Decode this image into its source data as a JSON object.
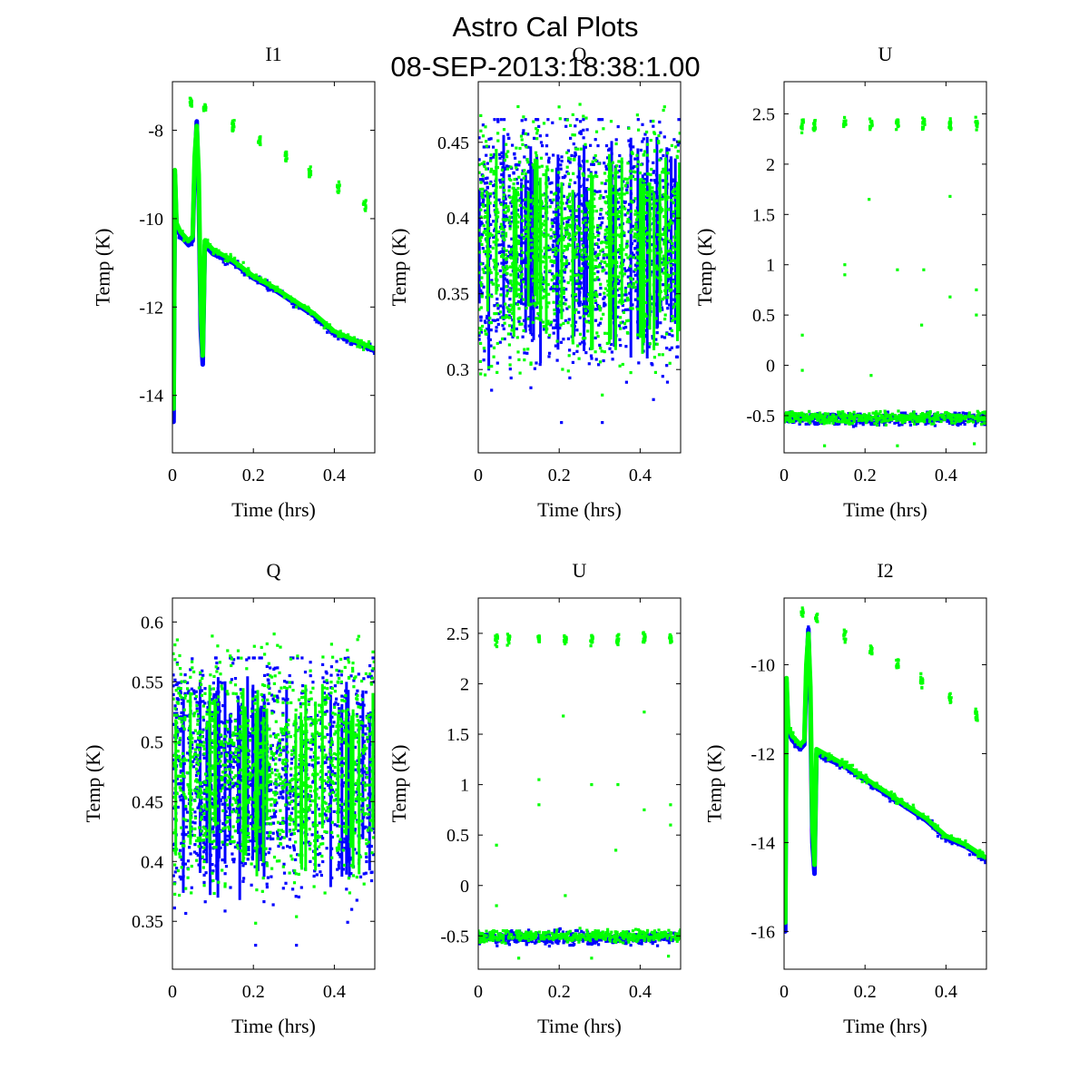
{
  "figure": {
    "title_line1": "Astro Cal Plots",
    "title_line2": "08-SEP-2013:18:38:1.00"
  },
  "colors": {
    "series_blue": "#0000ff",
    "series_green": "#00ff00",
    "axes": "#000000",
    "background": "#ffffff"
  },
  "chart_data": [
    {
      "type": "scatter",
      "title": "I1",
      "xlabel": "Time (hrs)",
      "ylabel": "Temp (K)",
      "xlim": [
        0,
        0.5
      ],
      "ylim": [
        -15.3,
        -6.9
      ],
      "xticks": [
        0,
        0.2,
        0.4
      ],
      "xtick_labels": [
        "0",
        "0.2",
        "0.4"
      ],
      "yticks": [
        -14,
        -12,
        -10,
        -8
      ],
      "ytick_labels": [
        "-14",
        "-12",
        "-10",
        "-8"
      ],
      "series": [
        {
          "name": "blue",
          "color": "#0000ff",
          "kind": "drift",
          "points": [
            [
              0.0,
              -10.0
            ],
            [
              0.003,
              -14.6
            ],
            [
              0.006,
              -9.0
            ],
            [
              0.01,
              -10.2
            ],
            [
              0.02,
              -10.4
            ],
            [
              0.03,
              -10.5
            ],
            [
              0.04,
              -10.6
            ],
            [
              0.05,
              -10.5
            ],
            [
              0.055,
              -8.8
            ],
            [
              0.06,
              -7.8
            ],
            [
              0.065,
              -9.5
            ],
            [
              0.07,
              -12.5
            ],
            [
              0.075,
              -13.3
            ],
            [
              0.08,
              -10.6
            ],
            [
              0.1,
              -10.8
            ],
            [
              0.15,
              -11.0
            ],
            [
              0.2,
              -11.35
            ],
            [
              0.25,
              -11.6
            ],
            [
              0.3,
              -11.9
            ],
            [
              0.35,
              -12.2
            ],
            [
              0.4,
              -12.6
            ],
            [
              0.45,
              -12.8
            ],
            [
              0.5,
              -13.0
            ]
          ]
        },
        {
          "name": "green",
          "color": "#00ff00",
          "kind": "drift",
          "points": [
            [
              0.0,
              -9.5
            ],
            [
              0.003,
              -14.3
            ],
            [
              0.006,
              -8.9
            ],
            [
              0.01,
              -10.1
            ],
            [
              0.02,
              -10.3
            ],
            [
              0.03,
              -10.4
            ],
            [
              0.04,
              -10.5
            ],
            [
              0.05,
              -10.4
            ],
            [
              0.055,
              -8.6
            ],
            [
              0.06,
              -7.9
            ],
            [
              0.065,
              -9.0
            ],
            [
              0.07,
              -12.0
            ],
            [
              0.075,
              -13.1
            ],
            [
              0.08,
              -10.5
            ],
            [
              0.1,
              -10.7
            ],
            [
              0.15,
              -10.95
            ],
            [
              0.2,
              -11.3
            ],
            [
              0.25,
              -11.55
            ],
            [
              0.3,
              -11.85
            ],
            [
              0.35,
              -12.15
            ],
            [
              0.4,
              -12.55
            ],
            [
              0.45,
              -12.75
            ],
            [
              0.5,
              -12.95
            ]
          ]
        },
        {
          "name": "green-outliers",
          "color": "#00ff00",
          "kind": "clusters",
          "points": [
            [
              0.045,
              -7.35
            ],
            [
              0.08,
              -7.5
            ],
            [
              0.15,
              -7.9
            ],
            [
              0.215,
              -8.25
            ],
            [
              0.28,
              -8.55
            ],
            [
              0.34,
              -8.95
            ],
            [
              0.41,
              -9.3
            ],
            [
              0.475,
              -9.7
            ]
          ]
        }
      ]
    },
    {
      "type": "scatter",
      "title": "Q",
      "xlabel": "Time (hrs)",
      "ylabel": "Temp (K)",
      "xlim": [
        0,
        0.5
      ],
      "ylim": [
        0.245,
        0.49
      ],
      "xticks": [
        0,
        0.2,
        0.4
      ],
      "xtick_labels": [
        "0",
        "0.2",
        "0.4"
      ],
      "yticks": [
        0.3,
        0.35,
        0.4,
        0.45
      ],
      "ytick_labels": [
        "0.3",
        "0.35",
        "0.4",
        "0.45"
      ],
      "series": [
        {
          "name": "blue",
          "color": "#0000ff",
          "kind": "noise",
          "center": 0.385,
          "spread": 0.05,
          "min": 0.265,
          "max": 0.465
        },
        {
          "name": "green",
          "color": "#00ff00",
          "kind": "noise",
          "center": 0.385,
          "spread": 0.042,
          "min": 0.275,
          "max": 0.475
        }
      ]
    },
    {
      "type": "scatter",
      "title": "U",
      "xlabel": "Time (hrs)",
      "ylabel": "Temp (K)",
      "xlim": [
        0,
        0.5
      ],
      "ylim": [
        -0.87,
        2.82
      ],
      "xticks": [
        0,
        0.2,
        0.4
      ],
      "xtick_labels": [
        "0",
        "0.2",
        "0.4"
      ],
      "yticks": [
        -0.5,
        0,
        0.5,
        1,
        1.5,
        2,
        2.5
      ],
      "ytick_labels": [
        "-0.5",
        "0",
        "0.5",
        "1",
        "1.5",
        "2",
        "2.5"
      ],
      "series": [
        {
          "name": "blue",
          "color": "#0000ff",
          "kind": "band",
          "center": -0.53,
          "spread": 0.04
        },
        {
          "name": "green",
          "color": "#00ff00",
          "kind": "band",
          "center": -0.52,
          "spread": 0.035
        },
        {
          "name": "green-upper",
          "color": "#00ff00",
          "kind": "clusters",
          "points": [
            [
              0.045,
              2.38
            ],
            [
              0.075,
              2.38
            ],
            [
              0.15,
              2.4
            ],
            [
              0.215,
              2.4
            ],
            [
              0.28,
              2.4
            ],
            [
              0.345,
              2.4
            ],
            [
              0.41,
              2.4
            ],
            [
              0.475,
              2.4
            ]
          ]
        },
        {
          "name": "green-outliers",
          "color": "#00ff00",
          "kind": "points",
          "points": [
            [
              0.045,
              -0.05
            ],
            [
              0.045,
              0.3
            ],
            [
              0.15,
              1.0
            ],
            [
              0.15,
              0.9
            ],
            [
              0.21,
              1.65
            ],
            [
              0.215,
              -0.1
            ],
            [
              0.28,
              0.95
            ],
            [
              0.34,
              0.4
            ],
            [
              0.345,
              0.95
            ],
            [
              0.41,
              1.68
            ],
            [
              0.41,
              0.68
            ],
            [
              0.475,
              0.75
            ],
            [
              0.475,
              0.5
            ],
            [
              0.1,
              -0.8
            ],
            [
              0.28,
              -0.8
            ],
            [
              0.47,
              -0.78
            ]
          ]
        }
      ]
    },
    {
      "type": "scatter",
      "title": "Q",
      "xlabel": "Time (hrs)",
      "ylabel": "Temp (K)",
      "xlim": [
        0,
        0.5
      ],
      "ylim": [
        0.31,
        0.62
      ],
      "xticks": [
        0,
        0.2,
        0.4
      ],
      "xtick_labels": [
        "0",
        "0.2",
        "0.4"
      ],
      "yticks": [
        0.35,
        0.4,
        0.45,
        0.5,
        0.55,
        0.6
      ],
      "ytick_labels": [
        "0.35",
        "0.4",
        "0.45",
        "0.5",
        "0.55",
        "0.6"
      ],
      "series": [
        {
          "name": "blue",
          "color": "#0000ff",
          "kind": "noise",
          "center": 0.475,
          "spread": 0.06,
          "min": 0.33,
          "max": 0.57
        },
        {
          "name": "green",
          "color": "#00ff00",
          "kind": "noise",
          "center": 0.48,
          "spread": 0.052,
          "min": 0.345,
          "max": 0.59
        }
      ]
    },
    {
      "type": "scatter",
      "title": "U",
      "xlabel": "Time (hrs)",
      "ylabel": "Temp (K)",
      "xlim": [
        0,
        0.5
      ],
      "ylim": [
        -0.83,
        2.85
      ],
      "xticks": [
        0,
        0.2,
        0.4
      ],
      "xtick_labels": [
        "0",
        "0.2",
        "0.4"
      ],
      "yticks": [
        -0.5,
        0,
        0.5,
        1,
        1.5,
        2,
        2.5
      ],
      "ytick_labels": [
        "-0.5",
        "0",
        "0.5",
        "1",
        "1.5",
        "2",
        "2.5"
      ],
      "series": [
        {
          "name": "blue",
          "color": "#0000ff",
          "kind": "band",
          "center": -0.52,
          "spread": 0.04
        },
        {
          "name": "green",
          "color": "#00ff00",
          "kind": "band",
          "center": -0.5,
          "spread": 0.035
        },
        {
          "name": "green-upper",
          "color": "#00ff00",
          "kind": "clusters",
          "points": [
            [
              0.045,
              2.43
            ],
            [
              0.075,
              2.43
            ],
            [
              0.15,
              2.45
            ],
            [
              0.215,
              2.45
            ],
            [
              0.28,
              2.45
            ],
            [
              0.345,
              2.45
            ],
            [
              0.41,
              2.45
            ],
            [
              0.475,
              2.45
            ]
          ]
        },
        {
          "name": "green-outliers",
          "color": "#00ff00",
          "kind": "points",
          "points": [
            [
              0.045,
              0.4
            ],
            [
              0.045,
              -0.2
            ],
            [
              0.15,
              1.05
            ],
            [
              0.15,
              0.8
            ],
            [
              0.21,
              1.68
            ],
            [
              0.215,
              -0.1
            ],
            [
              0.28,
              1.0
            ],
            [
              0.34,
              0.35
            ],
            [
              0.345,
              1.0
            ],
            [
              0.41,
              1.72
            ],
            [
              0.41,
              0.75
            ],
            [
              0.475,
              0.6
            ],
            [
              0.475,
              0.8
            ],
            [
              0.1,
              -0.72
            ],
            [
              0.28,
              -0.72
            ],
            [
              0.47,
              -0.7
            ]
          ]
        }
      ]
    },
    {
      "type": "scatter",
      "title": "I2",
      "xlabel": "Time (hrs)",
      "ylabel": "Temp (K)",
      "xlim": [
        0,
        0.5
      ],
      "ylim": [
        -16.85,
        -8.5
      ],
      "xticks": [
        0,
        0.2,
        0.4
      ],
      "xtick_labels": [
        "0",
        "0.2",
        "0.4"
      ],
      "yticks": [
        -16,
        -14,
        -12,
        -10
      ],
      "ytick_labels": [
        "-16",
        "-14",
        "-12",
        "-10"
      ],
      "series": [
        {
          "name": "blue",
          "color": "#0000ff",
          "kind": "drift",
          "points": [
            [
              0.0,
              -11.5
            ],
            [
              0.003,
              -16.0
            ],
            [
              0.006,
              -10.4
            ],
            [
              0.01,
              -11.5
            ],
            [
              0.02,
              -11.7
            ],
            [
              0.03,
              -11.8
            ],
            [
              0.04,
              -11.9
            ],
            [
              0.05,
              -11.8
            ],
            [
              0.055,
              -10.2
            ],
            [
              0.06,
              -9.2
            ],
            [
              0.065,
              -11.0
            ],
            [
              0.07,
              -14.0
            ],
            [
              0.075,
              -14.7
            ],
            [
              0.08,
              -12.0
            ],
            [
              0.1,
              -12.1
            ],
            [
              0.15,
              -12.3
            ],
            [
              0.2,
              -12.6
            ],
            [
              0.25,
              -12.9
            ],
            [
              0.3,
              -13.2
            ],
            [
              0.35,
              -13.5
            ],
            [
              0.4,
              -13.9
            ],
            [
              0.45,
              -14.1
            ],
            [
              0.5,
              -14.4
            ]
          ]
        },
        {
          "name": "green",
          "color": "#00ff00",
          "kind": "drift",
          "points": [
            [
              0.0,
              -11.2
            ],
            [
              0.003,
              -15.8
            ],
            [
              0.006,
              -10.3
            ],
            [
              0.01,
              -11.4
            ],
            [
              0.02,
              -11.6
            ],
            [
              0.03,
              -11.7
            ],
            [
              0.04,
              -11.8
            ],
            [
              0.05,
              -11.7
            ],
            [
              0.055,
              -10.0
            ],
            [
              0.06,
              -9.3
            ],
            [
              0.065,
              -10.5
            ],
            [
              0.07,
              -13.6
            ],
            [
              0.075,
              -14.5
            ],
            [
              0.08,
              -11.9
            ],
            [
              0.1,
              -12.0
            ],
            [
              0.15,
              -12.25
            ],
            [
              0.2,
              -12.55
            ],
            [
              0.25,
              -12.85
            ],
            [
              0.3,
              -13.15
            ],
            [
              0.35,
              -13.45
            ],
            [
              0.4,
              -13.85
            ],
            [
              0.45,
              -14.05
            ],
            [
              0.5,
              -14.35
            ]
          ]
        },
        {
          "name": "green-outliers",
          "color": "#00ff00",
          "kind": "clusters",
          "points": [
            [
              0.045,
              -8.8
            ],
            [
              0.08,
              -8.95
            ],
            [
              0.15,
              -9.35
            ],
            [
              0.215,
              -9.65
            ],
            [
              0.28,
              -10.0
            ],
            [
              0.34,
              -10.35
            ],
            [
              0.41,
              -10.75
            ],
            [
              0.475,
              -11.15
            ]
          ]
        }
      ]
    }
  ]
}
